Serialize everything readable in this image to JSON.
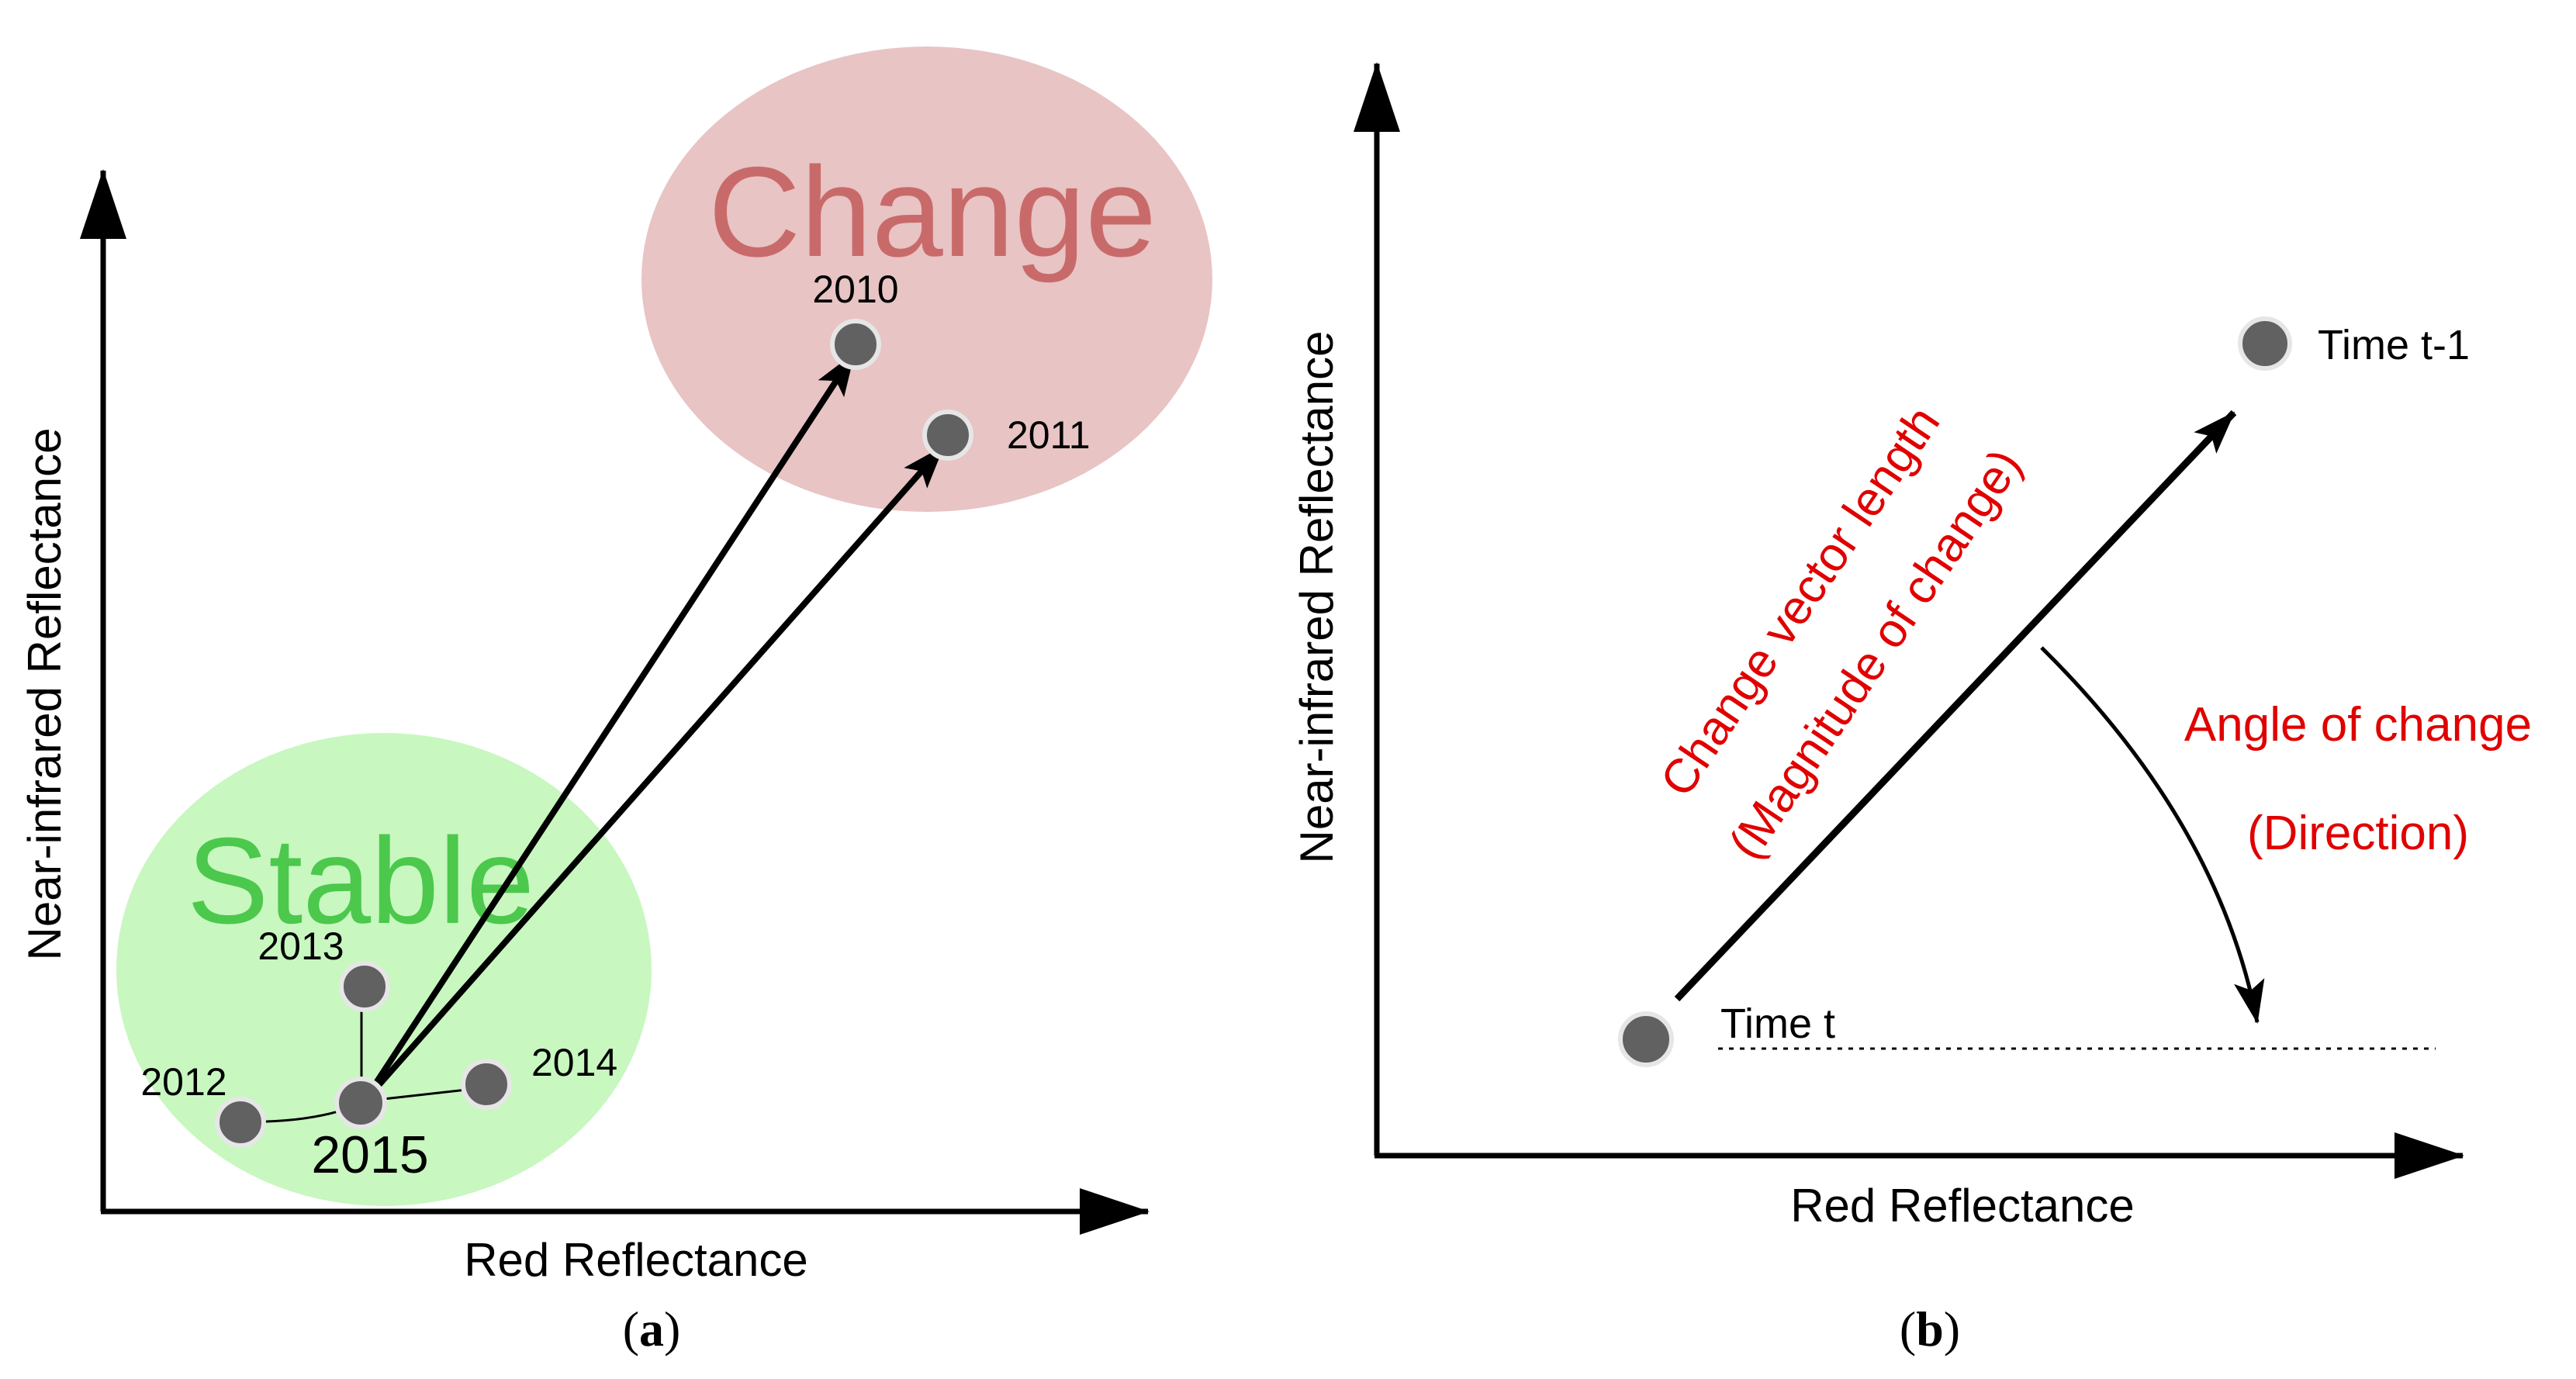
{
  "panel_a": {
    "x_axis_label": "Red Reflectance",
    "y_axis_label": "Near-infrared Reflectance",
    "change_region_label": "Change",
    "stable_region_label": "Stable",
    "year_2010": "2010",
    "year_2011": "2011",
    "year_2012": "2012",
    "year_2013": "2013",
    "year_2014": "2014",
    "year_2015": "2015",
    "caption_letter": "a",
    "caption_open": "(",
    "caption_close": ")",
    "colors": {
      "change_region": "#e8c4c4",
      "change_text": "#c96a6a",
      "stable_region": "#c8f7c0",
      "stable_text": "#4cc84c",
      "point": "#616161"
    }
  },
  "panel_b": {
    "x_axis_label": "Red Reflectance",
    "y_axis_label": "Near-infrared Reflectance",
    "time_t_label": "Time t",
    "time_t1_label": "Time t-1",
    "vector_length_label": "Change vector length",
    "magnitude_label": "(Magnitude of change)",
    "angle_label": "Angle of change",
    "direction_label": "(Direction)",
    "caption_letter": "b",
    "caption_open": "(",
    "caption_close": ")",
    "colors": {
      "annotation_text": "#e00000",
      "point": "#616161"
    }
  }
}
